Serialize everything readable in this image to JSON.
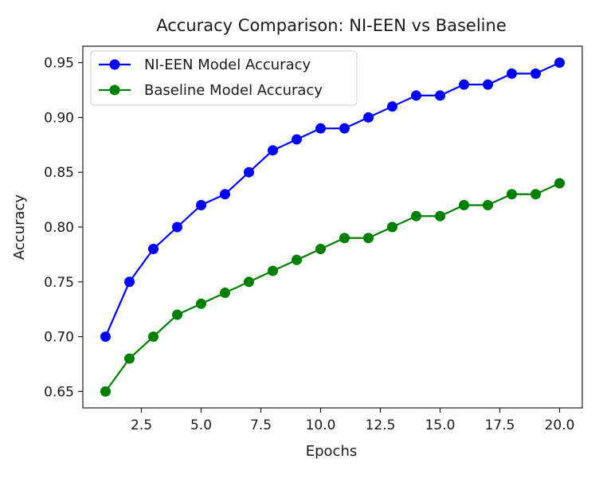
{
  "chart_data": {
    "type": "line",
    "title": "Accuracy Comparison: NI-EEN vs Baseline",
    "xlabel": "Epochs",
    "ylabel": "Accuracy",
    "x": [
      1,
      2,
      3,
      4,
      5,
      6,
      7,
      8,
      9,
      10,
      11,
      12,
      13,
      14,
      15,
      16,
      17,
      18,
      19,
      20
    ],
    "xlim": [
      0.05,
      20.95
    ],
    "ylim": [
      0.635,
      0.965
    ],
    "xticks": [
      "2.5",
      "5.0",
      "7.5",
      "10.0",
      "12.5",
      "15.0",
      "17.5",
      "20.0"
    ],
    "xtick_values": [
      2.5,
      5.0,
      7.5,
      10.0,
      12.5,
      15.0,
      17.5,
      20.0
    ],
    "yticks": [
      "0.65",
      "0.70",
      "0.75",
      "0.80",
      "0.85",
      "0.90",
      "0.95"
    ],
    "ytick_values": [
      0.65,
      0.7,
      0.75,
      0.8,
      0.85,
      0.9,
      0.95
    ],
    "grid": false,
    "legend_position": "top-left",
    "series": [
      {
        "name": "NI-EEN Model Accuracy",
        "color": "#0000ff",
        "marker": "circle",
        "values": [
          0.7,
          0.75,
          0.78,
          0.8,
          0.82,
          0.83,
          0.85,
          0.87,
          0.88,
          0.89,
          0.89,
          0.9,
          0.91,
          0.92,
          0.92,
          0.93,
          0.93,
          0.94,
          0.94,
          0.95
        ]
      },
      {
        "name": "Baseline Model Accuracy",
        "color": "#008000",
        "marker": "circle",
        "values": [
          0.65,
          0.68,
          0.7,
          0.72,
          0.73,
          0.74,
          0.75,
          0.76,
          0.77,
          0.78,
          0.79,
          0.79,
          0.8,
          0.81,
          0.81,
          0.82,
          0.82,
          0.83,
          0.83,
          0.84
        ]
      }
    ]
  }
}
